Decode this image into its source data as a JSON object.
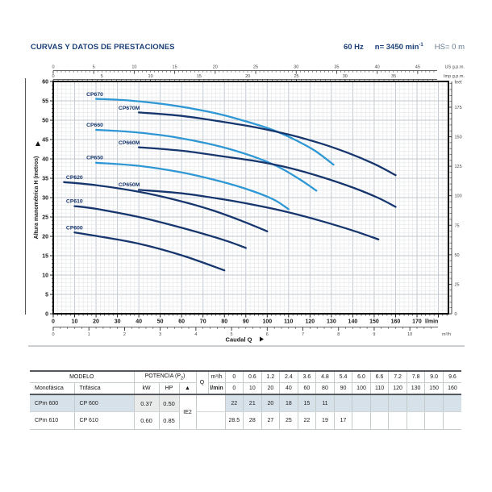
{
  "header": {
    "title": "CURVAS Y DATOS DE PRESTACIONES",
    "frequency": "60 Hz",
    "speed_prefix": "n= 3450 min",
    "speed_sup": "-1",
    "suction_head": "HS= 0 m"
  },
  "colors": {
    "navy": "#17366d",
    "light_blue": "#2f97d3",
    "title_blue": "#1b3f77",
    "grid_minor": "#e3e5e7",
    "grid_major": "#c2c9d2",
    "row_tint": "#d7e1ea",
    "power_gray": "#e9eaea"
  },
  "chart_data": {
    "type": "line",
    "title": "",
    "xlabel": "Caudal Q",
    "ylabel": "Altura manométrica H (metros)",
    "x_axis_lmin": {
      "unit": "l/min",
      "labels": [
        0,
        10,
        20,
        30,
        40,
        50,
        60,
        70,
        80,
        90,
        100,
        110,
        120,
        130,
        140,
        150,
        160,
        170
      ],
      "minor_step": 2,
      "max": 184
    },
    "x_axis_m3h": {
      "unit": "m³/h",
      "labels": [
        0,
        1,
        2,
        3,
        4,
        5,
        6,
        7,
        8,
        9,
        10
      ],
      "minor_step": 0.2,
      "lmin_per_unit": 16.667
    },
    "x_axis_usgpm": {
      "unit": "US g.p.m.",
      "labels": [
        0,
        5,
        10,
        15,
        20,
        25,
        30,
        35,
        40,
        45
      ],
      "minor_step": 0.5,
      "lmin_per_unit": 3.785
    },
    "x_axis_impgpm": {
      "unit": "Imp g.p.m.",
      "labels": [
        0,
        5,
        10,
        15,
        20,
        25,
        30,
        35
      ],
      "minor_step": 0.5,
      "lmin_per_unit": 4.546
    },
    "y_axis_m": {
      "unit": "m",
      "labels": [
        0,
        5,
        10,
        15,
        20,
        25,
        30,
        35,
        40,
        45,
        50,
        55,
        60
      ],
      "minor_step": 1,
      "max": 60
    },
    "y_axis_feet": {
      "unit": "feet",
      "labels": [
        0,
        25,
        50,
        75,
        100,
        125,
        150,
        175
      ],
      "minor_step": 5,
      "m_per_unit": 0.3048
    },
    "grid": true,
    "legend_position": "labels-on-curves",
    "series": [
      {
        "name": "CP670",
        "color": "#2f97d3",
        "label_q": 15.5,
        "label_h": 56.3,
        "points": [
          [
            20,
            55.5
          ],
          [
            35,
            55.1
          ],
          [
            55,
            53.9
          ],
          [
            75,
            51.9
          ],
          [
            90,
            49.7
          ],
          [
            102,
            47.6
          ],
          [
            112,
            45.2
          ],
          [
            122,
            42.2
          ],
          [
            131,
            38.5
          ]
        ]
      },
      {
        "name": "CP670M",
        "color": "#17366d",
        "label_q": 30.5,
        "label_h": 52.7,
        "points": [
          [
            40,
            52
          ],
          [
            60,
            51.1
          ],
          [
            80,
            49.5
          ],
          [
            95,
            48.1
          ],
          [
            110,
            46.3
          ],
          [
            125,
            44
          ],
          [
            138,
            41.5
          ],
          [
            150,
            38.7
          ],
          [
            160,
            35.8
          ]
        ]
      },
      {
        "name": "CP660",
        "color": "#2f97d3",
        "label_q": 15.5,
        "label_h": 48.3,
        "points": [
          [
            20,
            47.5
          ],
          [
            38,
            46.9
          ],
          [
            58,
            45.5
          ],
          [
            78,
            43.2
          ],
          [
            93,
            40.7
          ],
          [
            105,
            38
          ],
          [
            115,
            34.8
          ],
          [
            123,
            31.8
          ]
        ]
      },
      {
        "name": "CP660M",
        "color": "#17366d",
        "label_q": 30.5,
        "label_h": 43.8,
        "points": [
          [
            40,
            43
          ],
          [
            60,
            42.1
          ],
          [
            80,
            40.6
          ],
          [
            95,
            39.4
          ],
          [
            110,
            37.7
          ],
          [
            125,
            35.4
          ],
          [
            140,
            32.6
          ],
          [
            152,
            29.9
          ],
          [
            160,
            27.6
          ]
        ]
      },
      {
        "name": "CP650",
        "color": "#2f97d3",
        "label_q": 15.5,
        "label_h": 39.9,
        "points": [
          [
            20,
            39
          ],
          [
            40,
            38.2
          ],
          [
            60,
            36.5
          ],
          [
            78,
            34.2
          ],
          [
            92,
            31.9
          ],
          [
            103,
            29.5
          ],
          [
            110,
            27
          ]
        ]
      },
      {
        "name": "CP650M",
        "color": "#17366d",
        "label_q": 30.5,
        "label_h": 32.9,
        "points": [
          [
            40,
            32
          ],
          [
            60,
            31.1
          ],
          [
            80,
            29.5
          ],
          [
            95,
            28
          ],
          [
            110,
            26.2
          ],
          [
            125,
            24
          ],
          [
            140,
            21.5
          ],
          [
            152,
            19.2
          ]
        ]
      },
      {
        "name": "CP620",
        "color": "#17366d",
        "label_q": 6,
        "label_h": 34.8,
        "points": [
          [
            5,
            34
          ],
          [
            20,
            33.2
          ],
          [
            40,
            31.5
          ],
          [
            58,
            29.3
          ],
          [
            74,
            26.8
          ],
          [
            88,
            24
          ],
          [
            100,
            21.3
          ]
        ]
      },
      {
        "name": "CP610",
        "color": "#17366d",
        "label_q": 6,
        "label_h": 28.6,
        "points": [
          [
            10,
            27.8
          ],
          [
            20,
            27.1
          ],
          [
            40,
            25
          ],
          [
            60,
            22.2
          ],
          [
            80,
            19
          ],
          [
            90,
            17
          ]
        ]
      },
      {
        "name": "CP600",
        "color": "#17366d",
        "label_q": 6,
        "label_h": 21.8,
        "points": [
          [
            10,
            21
          ],
          [
            20,
            20.1
          ],
          [
            40,
            18.1
          ],
          [
            60,
            15.1
          ],
          [
            80,
            11.2
          ]
        ]
      }
    ]
  },
  "table": {
    "modelo_header": "MODELO",
    "monofasica_header": "Monofásica",
    "trifasica_header": "Trifásica",
    "potencia_prefix": "POTENCIA (P",
    "potencia_sub": "2",
    "potencia_suffix": ")",
    "kw_header": "kW",
    "hp_header": "HP",
    "triangle_header": "▲",
    "q_label": "Q",
    "m3h_label": "m³/h",
    "lmin_label": "l/min",
    "ie_badge": "IE2",
    "m3h_values": [
      "0",
      "0.6",
      "1.2",
      "2.4",
      "3.6",
      "4.8",
      "5.4",
      "6.0",
      "6.6",
      "7.2",
      "7.8",
      "9.0",
      "9.6"
    ],
    "lmin_values": [
      "0",
      "10",
      "20",
      "40",
      "60",
      "80",
      "90",
      "100",
      "110",
      "120",
      "130",
      "150",
      "160"
    ],
    "rows": [
      {
        "mono": "CPm 600",
        "tri": "CP 600",
        "kw": "0.37",
        "hp": "0.50",
        "values": [
          "22",
          "21",
          "20",
          "18",
          "15",
          "11",
          "",
          "",
          "",
          "",
          "",
          "",
          ""
        ]
      },
      {
        "mono": "CPm 610",
        "tri": "CP 610",
        "kw": "0.60",
        "hp": "0.85",
        "values": [
          "28.5",
          "28",
          "27",
          "25",
          "22",
          "19",
          "17",
          "",
          "",
          "",
          "",
          "",
          ""
        ]
      }
    ]
  }
}
